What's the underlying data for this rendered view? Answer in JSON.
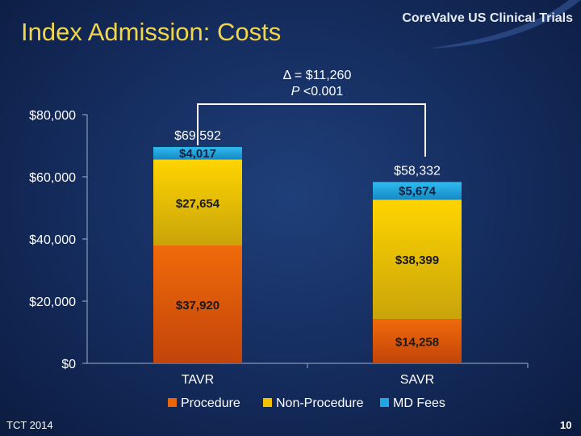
{
  "slide": {
    "title": "Index Admission: Costs",
    "logo": "CoreValve US Clinical Trials",
    "footer_left": "TCT 2014",
    "page_number": "10"
  },
  "colors": {
    "procedure": "#e8650a",
    "non_procedure": "#f2c200",
    "md_fees": "#1ea7e0",
    "title": "#f2d64a",
    "segment_label": "#1a1a1a"
  },
  "chart_data": {
    "type": "bar",
    "stacked": true,
    "categories": [
      "TAVR",
      "SAVR"
    ],
    "ylim": [
      0,
      80000
    ],
    "yticks": [
      0,
      20000,
      40000,
      60000,
      80000
    ],
    "ytick_labels": [
      "$0",
      "$20,000",
      "$40,000",
      "$60,000",
      "$80,000"
    ],
    "series": [
      {
        "name": "Procedure",
        "values": [
          37920,
          14258
        ],
        "labels": [
          "$37,920",
          "$14,258"
        ]
      },
      {
        "name": "Non-Procedure",
        "values": [
          27654,
          38399
        ],
        "labels": [
          "$27,654",
          "$38,399"
        ]
      },
      {
        "name": "MD Fees",
        "values": [
          4017,
          5674
        ],
        "labels": [
          "$4,017",
          "$5,674"
        ]
      }
    ],
    "totals": [
      69592,
      58332
    ],
    "total_labels": [
      "$69,592",
      "$58,332"
    ],
    "annotation": {
      "delta": "Δ = $11,260",
      "p_prefix": "P",
      "p_rest": " <0.001"
    },
    "legend_position": "bottom",
    "grid": false
  }
}
